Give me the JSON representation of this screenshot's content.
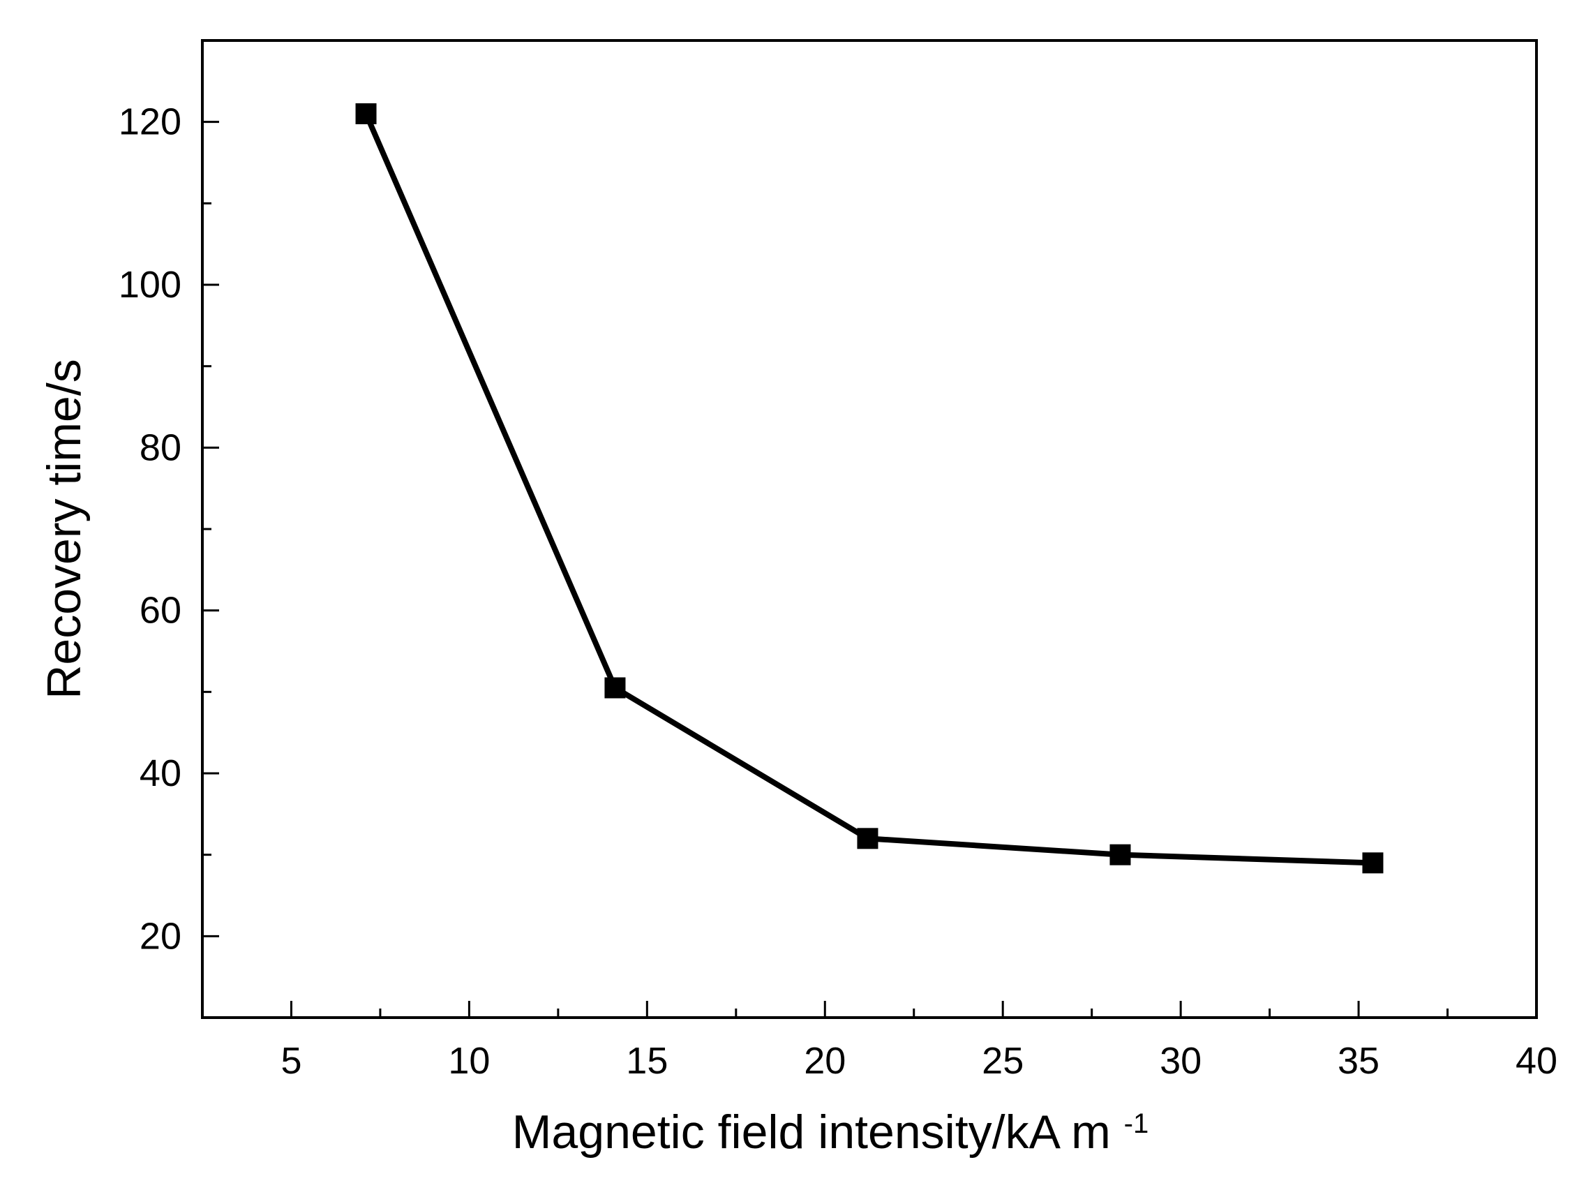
{
  "chart_data": {
    "type": "line",
    "title": "",
    "xlabel": "Magnetic field intensity/kA m",
    "xlabel_superscript": "-1",
    "ylabel": "Recovery time/s",
    "xlim": [
      2.5,
      40
    ],
    "ylim": [
      10,
      130
    ],
    "x_ticks": [
      5,
      10,
      15,
      20,
      25,
      30,
      35,
      40
    ],
    "y_ticks": [
      20,
      40,
      60,
      80,
      100,
      120
    ],
    "grid": false,
    "legend": "none",
    "marker": "square",
    "series": [
      {
        "name": "Recovery time",
        "color": "#000000",
        "x": [
          7.1,
          14.1,
          21.2,
          28.3,
          35.4
        ],
        "y": [
          121,
          50.5,
          32,
          30,
          29
        ]
      }
    ]
  }
}
